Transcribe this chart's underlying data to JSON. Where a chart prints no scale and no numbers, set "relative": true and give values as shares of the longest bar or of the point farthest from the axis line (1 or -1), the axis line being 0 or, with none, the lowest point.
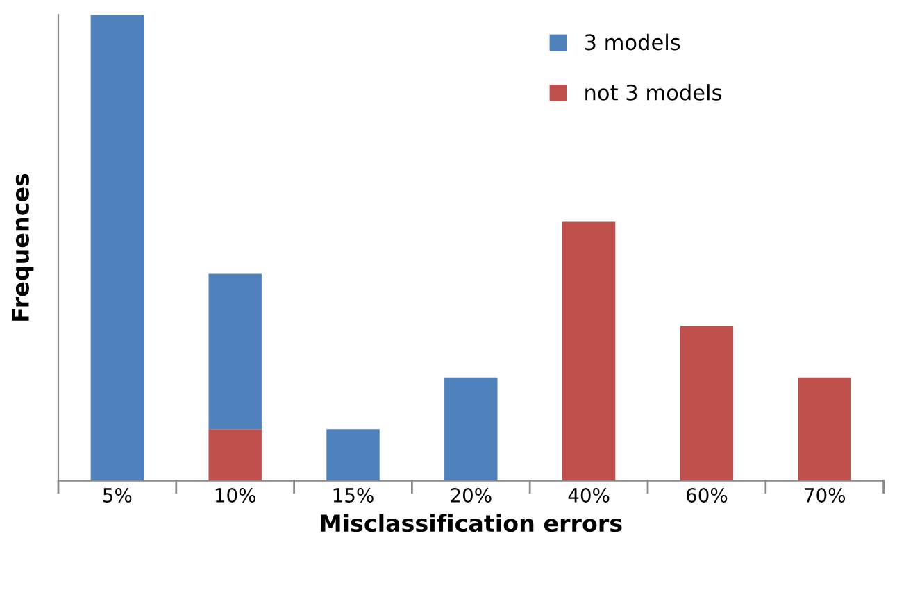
{
  "chart_data": {
    "type": "bar",
    "relative": true,
    "stacked": true,
    "xlabel": "Misclassification errors",
    "ylabel": "Frequences",
    "categories": [
      "5%",
      "10%",
      "15%",
      "20%",
      "40%",
      "60%",
      "70%"
    ],
    "series": [
      {
        "name": "not 3 models",
        "color": "#c0504d",
        "values": [
          0,
          0.111,
          0,
          0,
          0.556,
          0.333,
          0.222
        ]
      },
      {
        "name": "3 models",
        "color": "#4f81bd",
        "values": [
          1,
          0.333,
          0.111,
          0.222,
          0,
          0,
          0
        ]
      }
    ],
    "legend": "top",
    "grid": false
  }
}
